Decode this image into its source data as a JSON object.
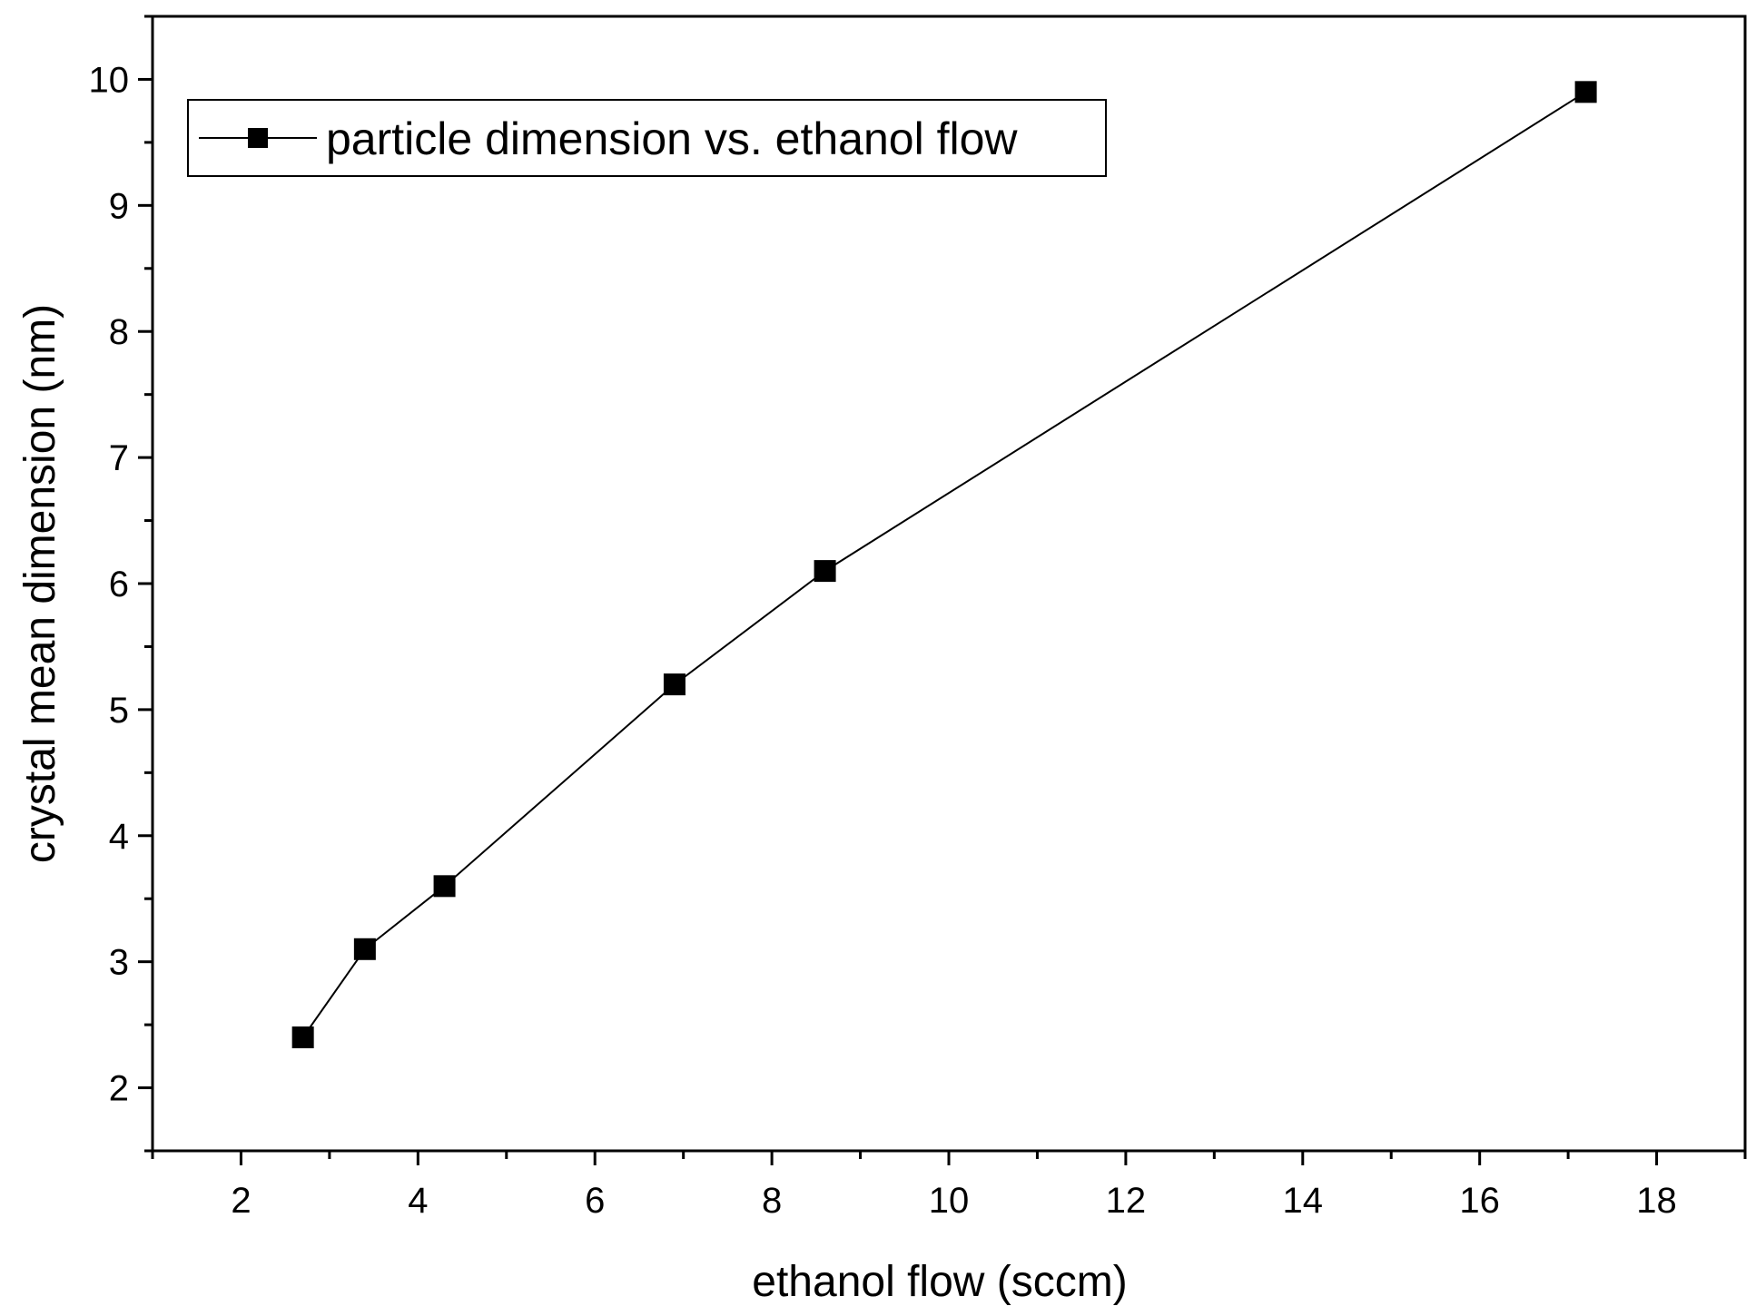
{
  "chart_data": {
    "type": "line",
    "title": "",
    "xlabel": "ethanol flow (sccm)",
    "ylabel": "crystal mean dimension (nm)",
    "xlim": [
      1,
      19
    ],
    "ylim": [
      1.5,
      10.5
    ],
    "x_ticks": [
      "2",
      "4",
      "6",
      "8",
      "10",
      "12",
      "14",
      "16",
      "18"
    ],
    "y_ticks": [
      "2",
      "3",
      "4",
      "5",
      "6",
      "7",
      "8",
      "9",
      "10"
    ],
    "grid": false,
    "legend_position": "top-left",
    "series": [
      {
        "name": "particle dimension vs. ethanol flow",
        "marker": "square",
        "color": "#000000",
        "x": [
          2.7,
          3.4,
          4.3,
          6.9,
          8.6,
          17.2
        ],
        "y": [
          2.4,
          3.1,
          3.6,
          5.2,
          6.1,
          9.9
        ]
      }
    ]
  }
}
